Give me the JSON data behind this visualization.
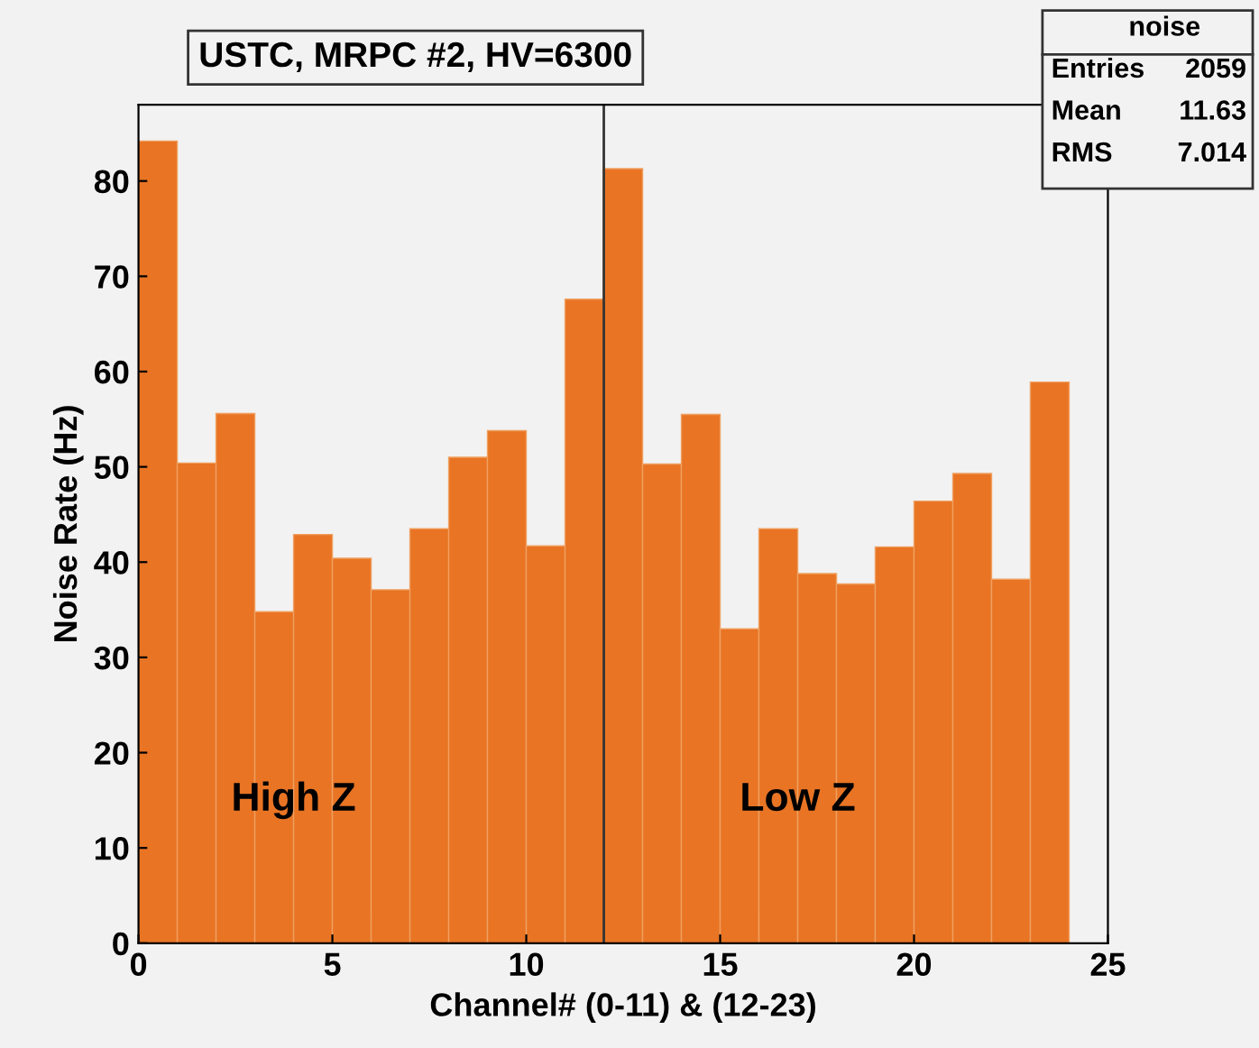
{
  "chart_data": {
    "type": "histogram",
    "title": "USTC, MRPC #2, HV=6300",
    "xlabel": "Channel# (0-11) & (12-23)",
    "ylabel": "Noise Rate (Hz)",
    "bins": [
      0,
      1,
      2,
      3,
      4,
      5,
      6,
      7,
      8,
      9,
      10,
      11,
      12,
      13,
      14,
      15,
      16,
      17,
      18,
      19,
      20,
      21,
      22,
      23,
      24
    ],
    "values": [
      84.2,
      50.4,
      55.6,
      34.8,
      42.9,
      40.4,
      37.1,
      43.5,
      51.0,
      53.8,
      41.7,
      67.6,
      81.3,
      50.3,
      55.5,
      33.0,
      43.5,
      38.8,
      37.7,
      41.6,
      46.4,
      49.3,
      38.2,
      58.9
    ],
    "color": "#e87424",
    "xlim": [
      0,
      25
    ],
    "xticks": [
      0,
      5,
      10,
      15,
      20,
      25
    ],
    "ylim": [
      0,
      88
    ],
    "yticks": [
      0,
      10,
      20,
      30,
      40,
      50,
      60,
      70,
      80
    ],
    "ref_lines": [
      {
        "axis": "x",
        "value": 12,
        "label": null,
        "color": "#333333"
      }
    ],
    "annotations": [
      {
        "text": "High Z",
        "x": 4,
        "y": 15
      },
      {
        "text": "Low Z",
        "x": 17,
        "y": 15
      },
      "noise",
      "Entries 2059",
      "Mean 11.63",
      "RMS 7.014"
    ],
    "grid": false,
    "legend": false
  }
}
